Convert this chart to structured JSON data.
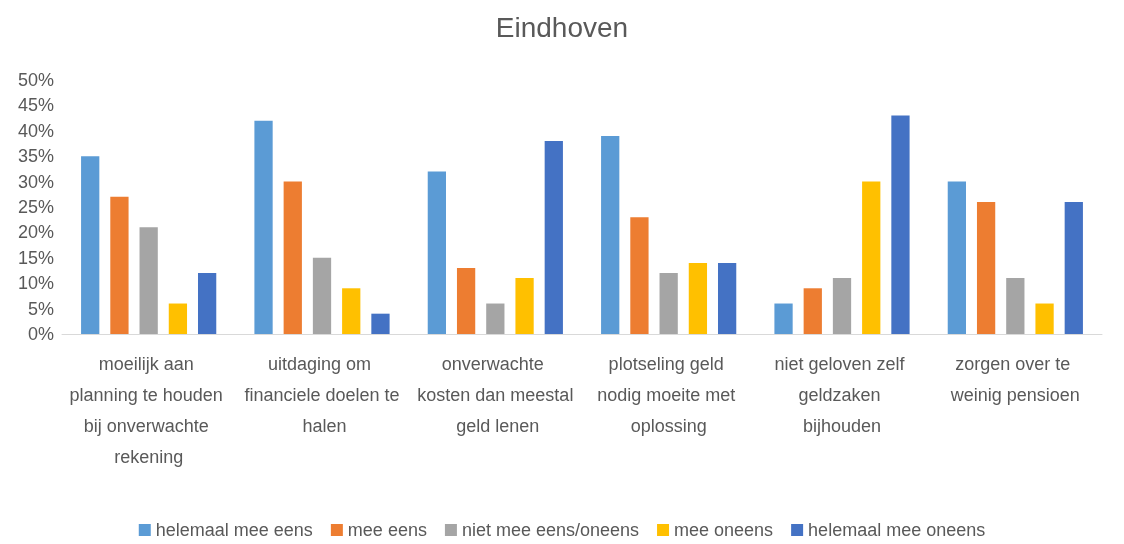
{
  "chart_data": {
    "type": "bar",
    "title": "Eindhoven",
    "categories": [
      "moeilijk aan planning te houden bij onverwachte rekening",
      "uitdaging om financiele doelen te halen",
      "onverwachte kosten dan meestal geld lenen",
      "plotseling geld nodig moeite met oplossing",
      "niet geloven zelf geldzaken bijhouden",
      "zorgen over te weinig pensioen"
    ],
    "series": [
      {
        "name": "helemaal mee eens",
        "color": "#5b9bd5",
        "values": [
          35,
          42,
          32,
          39,
          6,
          30
        ]
      },
      {
        "name": "mee eens",
        "color": "#ed7d31",
        "values": [
          27,
          30,
          13,
          23,
          9,
          26
        ]
      },
      {
        "name": "niet mee eens/oneens",
        "color": "#a5a5a5",
        "values": [
          21,
          15,
          6,
          12,
          11,
          11
        ]
      },
      {
        "name": "mee oneens",
        "color": "#ffc000",
        "values": [
          6,
          9,
          11,
          14,
          30,
          6
        ]
      },
      {
        "name": "helemaal mee oneens",
        "color": "#4472c4",
        "values": [
          12,
          4,
          38,
          14,
          43,
          26
        ]
      }
    ],
    "ylim": [
      0,
      50
    ],
    "yticks": [
      {
        "value": 0,
        "label": "0%"
      },
      {
        "value": 5,
        "label": "5%"
      },
      {
        "value": 10,
        "label": "10%"
      },
      {
        "value": 15,
        "label": "15%"
      },
      {
        "value": 20,
        "label": "20%"
      },
      {
        "value": 25,
        "label": "25%"
      },
      {
        "value": 30,
        "label": "30%"
      },
      {
        "value": 35,
        "label": "35%"
      },
      {
        "value": 40,
        "label": "40%"
      },
      {
        "value": 45,
        "label": "45%"
      },
      {
        "value": 50,
        "label": "50%"
      }
    ],
    "grid": false,
    "legend": "bottom"
  }
}
